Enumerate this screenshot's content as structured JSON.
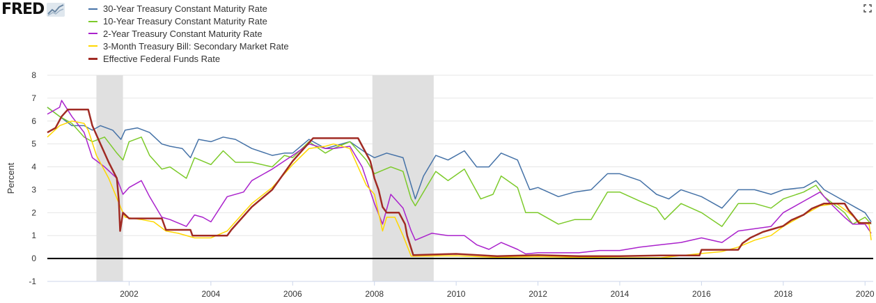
{
  "brand": {
    "logo_text": "FRED",
    "logo_icon": "line-graph-icon"
  },
  "fullscreen_icon": "fullscreen-icon",
  "chart_data": {
    "type": "line",
    "title": "",
    "xlabel": "",
    "ylabel": "Percent",
    "xlim": [
      2000.0,
      2020.2
    ],
    "ylim": [
      -1,
      8
    ],
    "x_ticks": [
      2002,
      2004,
      2006,
      2008,
      2010,
      2012,
      2014,
      2016,
      2018,
      2020
    ],
    "y_ticks": [
      -1,
      0,
      1,
      2,
      3,
      4,
      5,
      6,
      7,
      8
    ],
    "grid": "horizontal",
    "legend_position": "top-left",
    "zero_line": true,
    "recessions": [
      [
        2001.2,
        2001.85
      ],
      [
        2007.95,
        2009.45
      ]
    ],
    "series": [
      {
        "name": "30-Year Treasury Constant Maturity Rate",
        "color": "#4572a7",
        "width": 1.5,
        "points": [
          [
            2000.0,
            6.6
          ],
          [
            2000.3,
            6.2
          ],
          [
            2000.6,
            5.8
          ],
          [
            2000.9,
            5.8
          ],
          [
            2001.1,
            5.6
          ],
          [
            2001.3,
            5.8
          ],
          [
            2001.6,
            5.6
          ],
          [
            2001.8,
            5.2
          ],
          [
            2001.9,
            5.6
          ],
          [
            2002.2,
            5.7
          ],
          [
            2002.5,
            5.5
          ],
          [
            2002.8,
            5.0
          ],
          [
            2003.0,
            4.9
          ],
          [
            2003.3,
            4.8
          ],
          [
            2003.5,
            4.4
          ],
          [
            2003.7,
            5.2
          ],
          [
            2004.0,
            5.1
          ],
          [
            2004.3,
            5.3
          ],
          [
            2004.6,
            5.2
          ],
          [
            2005.0,
            4.8
          ],
          [
            2005.5,
            4.5
          ],
          [
            2005.8,
            4.6
          ],
          [
            2006.0,
            4.6
          ],
          [
            2006.4,
            5.2
          ],
          [
            2006.8,
            4.8
          ],
          [
            2007.0,
            4.9
          ],
          [
            2007.4,
            5.1
          ],
          [
            2007.8,
            4.6
          ],
          [
            2008.0,
            4.4
          ],
          [
            2008.3,
            4.6
          ],
          [
            2008.7,
            4.4
          ],
          [
            2008.9,
            3.2
          ],
          [
            2009.0,
            2.6
          ],
          [
            2009.2,
            3.6
          ],
          [
            2009.5,
            4.5
          ],
          [
            2009.8,
            4.3
          ],
          [
            2010.2,
            4.7
          ],
          [
            2010.5,
            4.0
          ],
          [
            2010.8,
            4.0
          ],
          [
            2011.1,
            4.6
          ],
          [
            2011.5,
            4.3
          ],
          [
            2011.8,
            3.0
          ],
          [
            2012.0,
            3.1
          ],
          [
            2012.5,
            2.7
          ],
          [
            2012.9,
            2.9
          ],
          [
            2013.3,
            3.0
          ],
          [
            2013.7,
            3.7
          ],
          [
            2014.0,
            3.7
          ],
          [
            2014.5,
            3.4
          ],
          [
            2014.9,
            2.8
          ],
          [
            2015.2,
            2.6
          ],
          [
            2015.5,
            3.0
          ],
          [
            2016.0,
            2.7
          ],
          [
            2016.5,
            2.2
          ],
          [
            2016.9,
            3.0
          ],
          [
            2017.3,
            3.0
          ],
          [
            2017.7,
            2.8
          ],
          [
            2018.0,
            3.0
          ],
          [
            2018.5,
            3.1
          ],
          [
            2018.8,
            3.4
          ],
          [
            2019.0,
            3.0
          ],
          [
            2019.5,
            2.5
          ],
          [
            2019.8,
            2.2
          ],
          [
            2020.0,
            2.0
          ],
          [
            2020.15,
            1.6
          ]
        ]
      },
      {
        "name": "10-Year Treasury Constant Maturity Rate",
        "color": "#7cca2a",
        "width": 1.5,
        "points": [
          [
            2000.0,
            6.6
          ],
          [
            2000.3,
            6.2
          ],
          [
            2000.6,
            5.9
          ],
          [
            2000.9,
            5.3
          ],
          [
            2001.1,
            5.1
          ],
          [
            2001.4,
            5.3
          ],
          [
            2001.7,
            4.6
          ],
          [
            2001.85,
            4.3
          ],
          [
            2002.0,
            5.1
          ],
          [
            2002.3,
            5.3
          ],
          [
            2002.5,
            4.5
          ],
          [
            2002.8,
            3.9
          ],
          [
            2003.0,
            4.0
          ],
          [
            2003.4,
            3.5
          ],
          [
            2003.6,
            4.4
          ],
          [
            2004.0,
            4.1
          ],
          [
            2004.3,
            4.7
          ],
          [
            2004.6,
            4.2
          ],
          [
            2005.0,
            4.2
          ],
          [
            2005.5,
            4.0
          ],
          [
            2005.8,
            4.5
          ],
          [
            2006.0,
            4.4
          ],
          [
            2006.4,
            5.1
          ],
          [
            2006.8,
            4.6
          ],
          [
            2007.0,
            4.8
          ],
          [
            2007.4,
            5.1
          ],
          [
            2007.8,
            4.3
          ],
          [
            2008.0,
            3.7
          ],
          [
            2008.4,
            4.0
          ],
          [
            2008.7,
            3.8
          ],
          [
            2008.9,
            2.6
          ],
          [
            2009.0,
            2.3
          ],
          [
            2009.3,
            3.2
          ],
          [
            2009.5,
            3.8
          ],
          [
            2009.8,
            3.4
          ],
          [
            2010.2,
            3.9
          ],
          [
            2010.6,
            2.6
          ],
          [
            2010.9,
            2.8
          ],
          [
            2011.1,
            3.6
          ],
          [
            2011.5,
            3.1
          ],
          [
            2011.7,
            2.0
          ],
          [
            2012.0,
            2.0
          ],
          [
            2012.5,
            1.5
          ],
          [
            2012.9,
            1.7
          ],
          [
            2013.3,
            1.7
          ],
          [
            2013.7,
            2.9
          ],
          [
            2014.0,
            2.9
          ],
          [
            2014.5,
            2.5
          ],
          [
            2014.9,
            2.2
          ],
          [
            2015.1,
            1.7
          ],
          [
            2015.5,
            2.4
          ],
          [
            2016.0,
            2.0
          ],
          [
            2016.5,
            1.4
          ],
          [
            2016.9,
            2.4
          ],
          [
            2017.3,
            2.4
          ],
          [
            2017.7,
            2.2
          ],
          [
            2018.0,
            2.6
          ],
          [
            2018.5,
            2.9
          ],
          [
            2018.8,
            3.2
          ],
          [
            2019.0,
            2.7
          ],
          [
            2019.5,
            2.0
          ],
          [
            2019.7,
            1.5
          ],
          [
            2020.0,
            1.8
          ],
          [
            2020.15,
            1.5
          ]
        ]
      },
      {
        "name": "2-Year Treasury Constant Maturity Rate",
        "color": "#aa22cc",
        "width": 1.5,
        "points": [
          [
            2000.0,
            6.3
          ],
          [
            2000.3,
            6.6
          ],
          [
            2000.35,
            6.9
          ],
          [
            2000.6,
            6.2
          ],
          [
            2000.9,
            5.5
          ],
          [
            2001.1,
            4.4
          ],
          [
            2001.4,
            4.0
          ],
          [
            2001.7,
            3.5
          ],
          [
            2001.85,
            2.8
          ],
          [
            2002.0,
            3.1
          ],
          [
            2002.3,
            3.4
          ],
          [
            2002.5,
            2.7
          ],
          [
            2002.8,
            1.8
          ],
          [
            2003.0,
            1.7
          ],
          [
            2003.4,
            1.4
          ],
          [
            2003.6,
            1.9
          ],
          [
            2003.8,
            1.8
          ],
          [
            2004.0,
            1.6
          ],
          [
            2004.4,
            2.7
          ],
          [
            2004.8,
            2.9
          ],
          [
            2005.0,
            3.4
          ],
          [
            2005.5,
            3.9
          ],
          [
            2006.0,
            4.5
          ],
          [
            2006.4,
            5.0
          ],
          [
            2006.8,
            4.8
          ],
          [
            2007.0,
            4.8
          ],
          [
            2007.4,
            4.9
          ],
          [
            2007.7,
            4.0
          ],
          [
            2008.0,
            2.4
          ],
          [
            2008.2,
            1.5
          ],
          [
            2008.4,
            2.8
          ],
          [
            2008.7,
            2.2
          ],
          [
            2008.9,
            1.2
          ],
          [
            2009.0,
            0.8
          ],
          [
            2009.4,
            1.1
          ],
          [
            2009.8,
            1.0
          ],
          [
            2010.2,
            1.0
          ],
          [
            2010.5,
            0.6
          ],
          [
            2010.8,
            0.4
          ],
          [
            2011.1,
            0.7
          ],
          [
            2011.5,
            0.4
          ],
          [
            2011.7,
            0.2
          ],
          [
            2012.0,
            0.25
          ],
          [
            2012.5,
            0.25
          ],
          [
            2013.0,
            0.25
          ],
          [
            2013.5,
            0.35
          ],
          [
            2014.0,
            0.35
          ],
          [
            2014.5,
            0.5
          ],
          [
            2015.0,
            0.6
          ],
          [
            2015.5,
            0.7
          ],
          [
            2016.0,
            0.9
          ],
          [
            2016.5,
            0.7
          ],
          [
            2016.9,
            1.2
          ],
          [
            2017.3,
            1.3
          ],
          [
            2017.7,
            1.4
          ],
          [
            2018.0,
            2.0
          ],
          [
            2018.5,
            2.5
          ],
          [
            2018.9,
            2.9
          ],
          [
            2019.1,
            2.5
          ],
          [
            2019.5,
            1.8
          ],
          [
            2019.7,
            1.5
          ],
          [
            2020.0,
            1.5
          ],
          [
            2020.15,
            1.1
          ]
        ]
      },
      {
        "name": "3-Month Treasury Bill: Secondary Market Rate",
        "color": "#ffd700",
        "width": 1.5,
        "points": [
          [
            2000.0,
            5.3
          ],
          [
            2000.3,
            5.8
          ],
          [
            2000.6,
            6.0
          ],
          [
            2000.9,
            5.9
          ],
          [
            2001.0,
            5.6
          ],
          [
            2001.2,
            4.5
          ],
          [
            2001.5,
            3.5
          ],
          [
            2001.8,
            2.2
          ],
          [
            2001.9,
            1.8
          ],
          [
            2002.3,
            1.7
          ],
          [
            2002.6,
            1.6
          ],
          [
            2002.9,
            1.2
          ],
          [
            2003.2,
            1.1
          ],
          [
            2003.6,
            0.9
          ],
          [
            2004.0,
            0.9
          ],
          [
            2004.4,
            1.2
          ],
          [
            2004.8,
            2.0
          ],
          [
            2005.0,
            2.4
          ],
          [
            2005.5,
            3.1
          ],
          [
            2006.0,
            4.1
          ],
          [
            2006.4,
            4.8
          ],
          [
            2006.8,
            4.9
          ],
          [
            2007.0,
            5.0
          ],
          [
            2007.4,
            4.8
          ],
          [
            2007.6,
            4.0
          ],
          [
            2007.8,
            3.2
          ],
          [
            2008.0,
            2.8
          ],
          [
            2008.2,
            1.2
          ],
          [
            2008.3,
            1.8
          ],
          [
            2008.5,
            1.8
          ],
          [
            2008.7,
            1.0
          ],
          [
            2008.9,
            0.1
          ],
          [
            2009.0,
            0.1
          ],
          [
            2010.0,
            0.12
          ],
          [
            2011.0,
            0.05
          ],
          [
            2012.0,
            0.08
          ],
          [
            2013.0,
            0.05
          ],
          [
            2014.0,
            0.03
          ],
          [
            2015.0,
            0.03
          ],
          [
            2015.9,
            0.2
          ],
          [
            2016.5,
            0.3
          ],
          [
            2016.9,
            0.5
          ],
          [
            2017.3,
            0.8
          ],
          [
            2017.7,
            1.0
          ],
          [
            2018.0,
            1.4
          ],
          [
            2018.5,
            1.9
          ],
          [
            2018.9,
            2.3
          ],
          [
            2019.3,
            2.4
          ],
          [
            2019.6,
            2.0
          ],
          [
            2019.9,
            1.55
          ],
          [
            2020.1,
            1.5
          ],
          [
            2020.15,
            0.8
          ]
        ]
      },
      {
        "name": "Effective Federal Funds Rate",
        "color": "#a02b24",
        "width": 2.5,
        "points": [
          [
            2000.0,
            5.5
          ],
          [
            2000.2,
            5.7
          ],
          [
            2000.35,
            6.2
          ],
          [
            2000.5,
            6.5
          ],
          [
            2001.0,
            6.5
          ],
          [
            2001.1,
            5.8
          ],
          [
            2001.3,
            5.0
          ],
          [
            2001.5,
            4.2
          ],
          [
            2001.7,
            3.5
          ],
          [
            2001.75,
            2.5
          ],
          [
            2001.78,
            1.2
          ],
          [
            2001.85,
            2.0
          ],
          [
            2002.0,
            1.75
          ],
          [
            2002.8,
            1.75
          ],
          [
            2002.9,
            1.25
          ],
          [
            2003.5,
            1.25
          ],
          [
            2003.55,
            1.0
          ],
          [
            2004.4,
            1.0
          ],
          [
            2004.5,
            1.25
          ],
          [
            2005.0,
            2.25
          ],
          [
            2005.5,
            3.0
          ],
          [
            2006.0,
            4.25
          ],
          [
            2006.5,
            5.25
          ],
          [
            2007.6,
            5.25
          ],
          [
            2007.75,
            4.75
          ],
          [
            2007.9,
            4.25
          ],
          [
            2008.0,
            3.5
          ],
          [
            2008.1,
            3.0
          ],
          [
            2008.2,
            2.25
          ],
          [
            2008.3,
            2.0
          ],
          [
            2008.6,
            2.0
          ],
          [
            2008.75,
            1.5
          ],
          [
            2008.8,
            1.0
          ],
          [
            2008.95,
            0.15
          ],
          [
            2010.0,
            0.2
          ],
          [
            2011.0,
            0.1
          ],
          [
            2012.0,
            0.15
          ],
          [
            2013.0,
            0.1
          ],
          [
            2014.0,
            0.1
          ],
          [
            2015.0,
            0.13
          ],
          [
            2015.95,
            0.13
          ],
          [
            2016.0,
            0.38
          ],
          [
            2016.9,
            0.38
          ],
          [
            2017.0,
            0.66
          ],
          [
            2017.2,
            0.91
          ],
          [
            2017.5,
            1.16
          ],
          [
            2018.0,
            1.42
          ],
          [
            2018.2,
            1.68
          ],
          [
            2018.5,
            1.91
          ],
          [
            2018.7,
            2.18
          ],
          [
            2019.0,
            2.4
          ],
          [
            2019.5,
            2.4
          ],
          [
            2019.6,
            2.1
          ],
          [
            2019.7,
            1.9
          ],
          [
            2019.85,
            1.55
          ],
          [
            2020.15,
            1.55
          ]
        ]
      }
    ]
  }
}
